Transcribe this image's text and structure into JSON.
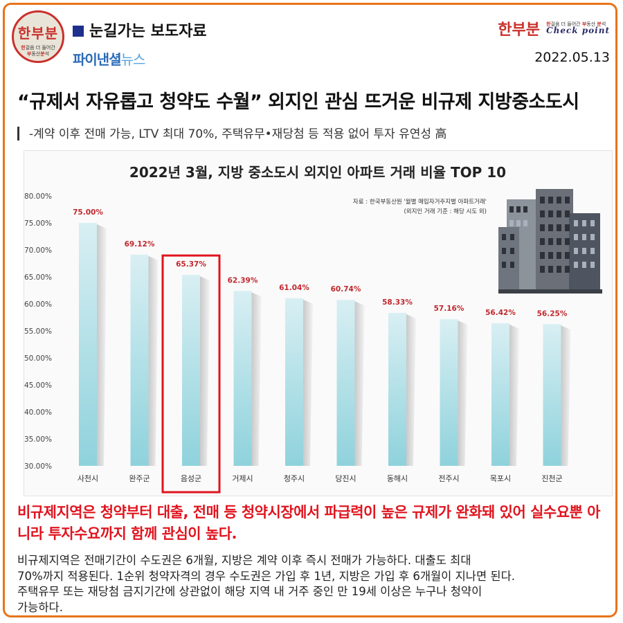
{
  "header": {
    "logo_main": "한부분",
    "logo_sub_1": "한",
    "logo_sub_2": "걸음 더 들어간",
    "logo_sub_3": "부",
    "logo_sub_4": "동산",
    "logo_sub_5": "분",
    "logo_sub_6": "석",
    "press_title": "눈길가는 보도자료",
    "news_logo_a": "파이낸셜",
    "news_logo_b": "뉴스",
    "brand_right": "한부분",
    "brand_right_tagline_1": "한",
    "brand_right_tagline_2": "걸음 더 들어간 ",
    "brand_right_tagline_3": "부",
    "brand_right_tagline_4": "동산 ",
    "brand_right_tagline_5": "분",
    "brand_right_tagline_6": "석",
    "brand_right_check": "Check point",
    "date": "2022.05.13"
  },
  "article": {
    "headline": "“규제서 자유롭고 청약도 수월” 외지인 관심 뜨거운 비규제 지방중소도시",
    "subheadline": "-계약 이후 전매 가능, LTV 최대 70%, 주택유무•재당첨 등 적용 없어 투자 유연성 高",
    "lead": "비규제지역은 청약부터 대출, 전매 등 청약시장에서 파급력이 높은 규제가 완화돼 있어 실수요뿐 아니라 투자수요까지 함께 관심이 높다.",
    "body_lines": [
      "비규제지역은 전매기간이 수도권은 6개월, 지방은 계약 이후 즉시 전매가 가능하다. 대출도 최대",
      "70%까지 적용된다. 1순위 청약자격의 경우 수도권은 가입 후 1년, 지방은 가입 후 6개월이 지나면 된다.",
      "주택유무 또는 재당첨 금지기간에 상관없이 해당 지역 내 거주 중인 만 19세 이상은 누구나 청약이",
      "가능하다."
    ]
  },
  "chart_data": {
    "type": "bar",
    "title": "2022년 3월, 지방 중소도시 외지인 아파트 거래 비율 TOP 10",
    "source_line_1": "자료 : 한국부동산원 '월별 매입자거주지별 아파트거래'",
    "source_line_2": "(외지인 거래 기준 : 해당 시도 외)",
    "categories": [
      "사천시",
      "완주군",
      "음성군",
      "거제시",
      "청주시",
      "당진시",
      "동해시",
      "전주시",
      "목포시",
      "진천군"
    ],
    "values": [
      75.0,
      69.12,
      65.37,
      62.39,
      61.04,
      60.74,
      58.33,
      57.16,
      56.42,
      56.25
    ],
    "value_labels": [
      "75.00%",
      "69.12%",
      "65.37%",
      "62.39%",
      "61.04%",
      "60.74%",
      "58.33%",
      "57.16%",
      "56.42%",
      "56.25%"
    ],
    "y_ticks": [
      "30.00%",
      "35.00%",
      "40.00%",
      "45.00%",
      "50.00%",
      "55.00%",
      "60.00%",
      "65.00%",
      "70.00%",
      "75.00%",
      "80.00%"
    ],
    "ylim": [
      30,
      80
    ],
    "highlight_category": "음성군",
    "colors": {
      "bar_top": "#d8eff3",
      "bar_bottom": "#8fd2dc",
      "label": "#c0282d",
      "highlight": "#e0141e"
    }
  },
  "colors": {
    "accent": "#e8731a",
    "brand_red": "#c9302c",
    "square": "#1e2f8c",
    "lead_red": "#e0141e"
  }
}
